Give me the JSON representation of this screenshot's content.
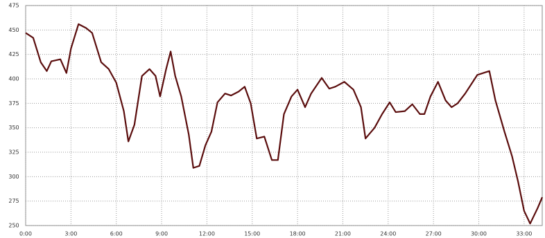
{
  "chart_data": {
    "type": "line",
    "x": [
      0,
      0.5,
      1.0,
      1.4,
      1.7,
      2.3,
      2.7,
      3.0,
      3.5,
      4.0,
      4.4,
      5.0,
      5.5,
      6.0,
      6.5,
      6.8,
      7.2,
      7.7,
      8.2,
      8.6,
      8.9,
      9.3,
      9.6,
      9.9,
      10.3,
      10.8,
      11.1,
      11.5,
      11.9,
      12.3,
      12.7,
      13.2,
      13.6,
      14.1,
      14.5,
      14.9,
      15.3,
      15.8,
      16.3,
      16.7,
      17.1,
      17.6,
      18.0,
      18.5,
      18.9,
      19.6,
      20.1,
      20.5,
      21.1,
      21.7,
      22.2,
      22.5,
      23.1,
      23.6,
      24.1,
      24.5,
      25.1,
      25.6,
      26.1,
      26.4,
      26.8,
      27.3,
      27.8,
      28.2,
      28.6,
      29.1,
      29.9,
      30.7,
      31.1,
      31.7,
      32.2,
      32.6,
      33.0,
      33.4,
      33.9,
      34.2
    ],
    "series": [
      {
        "color": "#5a0c0c",
        "values": [
          447,
          442,
          417,
          408,
          418,
          420,
          406,
          431,
          456,
          452,
          447,
          417,
          410,
          396,
          367,
          336,
          353,
          403,
          410,
          403,
          382,
          410,
          428,
          403,
          382,
          343,
          309,
          311,
          332,
          346,
          376,
          385,
          383,
          387,
          392,
          375,
          339,
          341,
          317,
          317,
          364,
          382,
          389,
          371,
          385,
          401,
          390,
          392,
          397,
          389,
          371,
          339,
          350,
          364,
          376,
          366,
          367,
          374,
          364,
          364,
          382,
          397,
          378,
          371,
          375,
          385,
          404,
          408,
          378,
          346,
          321,
          295,
          265,
          252,
          268,
          279
        ]
      }
    ],
    "xlim": [
      0,
      34.2
    ],
    "xticks": [
      {
        "value": 0,
        "label": "0:00"
      },
      {
        "value": 3,
        "label": "3:00"
      },
      {
        "value": 6,
        "label": "6:00"
      },
      {
        "value": 9,
        "label": "9:00"
      },
      {
        "value": 12,
        "label": "12:00"
      },
      {
        "value": 15,
        "label": "15:00"
      },
      {
        "value": 18,
        "label": "18:00"
      },
      {
        "value": 21,
        "label": "21:00"
      },
      {
        "value": 24,
        "label": "24:00"
      },
      {
        "value": 27,
        "label": "27:00"
      },
      {
        "value": 30,
        "label": "30:00"
      },
      {
        "value": 33,
        "label": "33:00"
      }
    ],
    "ylim": [
      250,
      475
    ],
    "yticks": [
      250,
      275,
      300,
      325,
      350,
      375,
      400,
      425,
      450,
      475
    ],
    "grid": true
  }
}
